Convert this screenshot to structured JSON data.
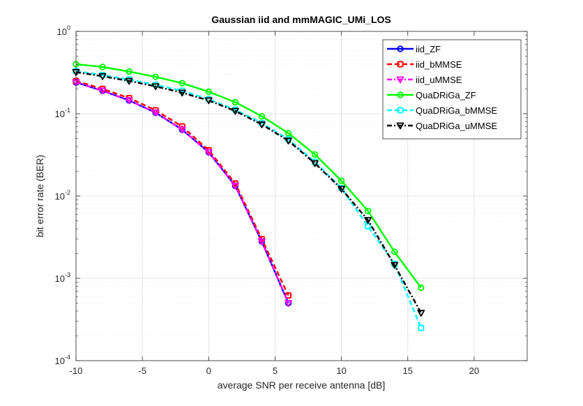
{
  "chart_data": {
    "type": "line",
    "title": "Gaussian iid and mmMAGIC_UMi_LOS",
    "xlabel": "average SNR per receive antenna [dB]",
    "ylabel": "bit error rate (BER)",
    "xlim": [
      -10,
      24
    ],
    "ylim": [
      0.0001,
      1
    ],
    "yscale": "log",
    "grid": true,
    "minor_grid": true,
    "legend_position": "top-right",
    "x_ticks": [
      -10,
      -5,
      0,
      5,
      10,
      15,
      20
    ],
    "x_tick_labels": [
      "-10",
      "-5",
      "0",
      "5",
      "10",
      "15",
      "20"
    ],
    "y_ticks": [
      {
        "value": 1,
        "base": "10",
        "exp": "0"
      },
      {
        "value": 0.1,
        "base": "10",
        "exp": "-1"
      },
      {
        "value": 0.01,
        "base": "10",
        "exp": "-2"
      },
      {
        "value": 0.001,
        "base": "10",
        "exp": "-3"
      },
      {
        "value": 0.0001,
        "base": "10",
        "exp": "-4"
      }
    ],
    "series": [
      {
        "name": "iid_ZF",
        "color": "#0000ff",
        "dash": "solid",
        "marker": "circle",
        "x": [
          -10,
          -8,
          -6,
          -4,
          -2,
          0,
          2,
          4,
          6
        ],
        "y": [
          0.24,
          0.19,
          0.145,
          0.103,
          0.064,
          0.034,
          0.0133,
          0.0028,
          0.0005
        ]
      },
      {
        "name": "iid_bMMSE",
        "color": "#ff0000",
        "dash": "dashed",
        "marker": "square",
        "x": [
          -10,
          -8,
          -6,
          -4,
          -2,
          0,
          2,
          4,
          6
        ],
        "y": [
          0.25,
          0.2,
          0.155,
          0.11,
          0.07,
          0.036,
          0.0142,
          0.003,
          0.00062
        ]
      },
      {
        "name": "iid_uMMSE",
        "color": "#ff00ff",
        "dash": "dashdot",
        "marker": "triangle-down",
        "x": [
          -10,
          -8,
          -6,
          -4,
          -2,
          0,
          2,
          4,
          6
        ],
        "y": [
          0.24,
          0.19,
          0.145,
          0.103,
          0.064,
          0.034,
          0.0133,
          0.0028,
          0.0005
        ]
      },
      {
        "name": "QuaDRiGa_ZF",
        "color": "#00ff00",
        "dash": "solid",
        "marker": "circle",
        "x": [
          -10,
          -8,
          -6,
          -4,
          -2,
          0,
          2,
          4,
          6,
          8,
          10,
          12,
          14,
          16
        ],
        "y": [
          0.4,
          0.37,
          0.325,
          0.28,
          0.235,
          0.185,
          0.138,
          0.093,
          0.058,
          0.032,
          0.0153,
          0.0066,
          0.0021,
          0.00077
        ]
      },
      {
        "name": "QuaDRiGa_bMMSE",
        "color": "#00ffff",
        "dash": "dashed",
        "marker": "square",
        "x": [
          -10,
          -8,
          -6,
          -4,
          -2,
          0,
          2,
          4,
          6,
          8,
          10,
          12,
          14,
          16
        ],
        "y": [
          0.33,
          0.295,
          0.26,
          0.225,
          0.19,
          0.15,
          0.112,
          0.077,
          0.049,
          0.026,
          0.0125,
          0.0043,
          0.0015,
          0.00025
        ]
      },
      {
        "name": "QuaDRiGa_uMMSE",
        "color": "#000000",
        "dash": "dashdot",
        "marker": "triangle-down",
        "x": [
          -10,
          -8,
          -6,
          -4,
          -2,
          0,
          2,
          4,
          6,
          8,
          10,
          12,
          14,
          16
        ],
        "y": [
          0.32,
          0.285,
          0.25,
          0.215,
          0.18,
          0.145,
          0.108,
          0.074,
          0.047,
          0.025,
          0.0122,
          0.0051,
          0.00145,
          0.00038
        ]
      }
    ]
  }
}
